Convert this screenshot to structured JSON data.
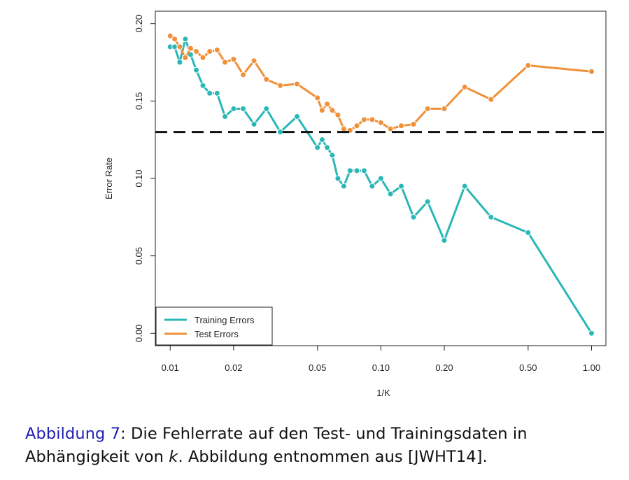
{
  "chart_data": {
    "type": "line",
    "xscale": "log",
    "x_tick_labels": [
      "0.01",
      "0.02",
      "0.05",
      "0.10",
      "0.20",
      "0.50",
      "1.00"
    ],
    "x_ticks": [
      0.01,
      0.02,
      0.05,
      0.1,
      0.2,
      0.5,
      1.0
    ],
    "y_tick_labels": [
      "0.00",
      "0.05",
      "0.10",
      "0.15",
      "0.20"
    ],
    "y_ticks": [
      0,
      0.05,
      0.1,
      0.15,
      0.2
    ],
    "xlabel": "1/K",
    "ylabel": "Error Rate",
    "xlim": [
      0.0085,
      1.17
    ],
    "ylim": [
      -0.008,
      0.208
    ],
    "hline": {
      "y": 0.13,
      "style": "dashed",
      "color": "#111111"
    },
    "legend_position": "bottom-left",
    "series": [
      {
        "name": "Training Errors",
        "color": "#2ab7b7",
        "x": [
          0.01,
          0.0105,
          0.0111,
          0.0118,
          0.0125,
          0.0133,
          0.0143,
          0.0154,
          0.0167,
          0.0182,
          0.02,
          0.0222,
          0.025,
          0.0286,
          0.0333,
          0.04,
          0.05,
          0.0526,
          0.0556,
          0.0588,
          0.0625,
          0.0667,
          0.0714,
          0.0769,
          0.0833,
          0.0909,
          0.1,
          0.1111,
          0.125,
          0.1429,
          0.1667,
          0.2,
          0.25,
          0.3333,
          0.5,
          1.0
        ],
        "y": [
          0.185,
          0.185,
          0.175,
          0.19,
          0.18,
          0.17,
          0.16,
          0.155,
          0.155,
          0.14,
          0.145,
          0.145,
          0.135,
          0.145,
          0.13,
          0.14,
          0.12,
          0.125,
          0.12,
          0.115,
          0.1,
          0.095,
          0.105,
          0.105,
          0.105,
          0.095,
          0.1,
          0.09,
          0.095,
          0.075,
          0.085,
          0.06,
          0.095,
          0.075,
          0.065,
          0.0
        ]
      },
      {
        "name": "Test Errors",
        "color": "#f0913a",
        "x": [
          0.01,
          0.0105,
          0.0111,
          0.0118,
          0.0125,
          0.0133,
          0.0143,
          0.0154,
          0.0167,
          0.0182,
          0.02,
          0.0222,
          0.025,
          0.0286,
          0.0333,
          0.04,
          0.05,
          0.0526,
          0.0556,
          0.0588,
          0.0625,
          0.0667,
          0.0714,
          0.0769,
          0.0833,
          0.0909,
          0.1,
          0.1111,
          0.125,
          0.1429,
          0.1667,
          0.2,
          0.25,
          0.3333,
          0.5,
          1.0
        ],
        "y": [
          0.192,
          0.19,
          0.185,
          0.178,
          0.184,
          0.182,
          0.178,
          0.182,
          0.183,
          0.175,
          0.177,
          0.167,
          0.176,
          0.164,
          0.16,
          0.161,
          0.152,
          0.144,
          0.148,
          0.144,
          0.141,
          0.132,
          0.131,
          0.134,
          0.138,
          0.138,
          0.136,
          0.132,
          0.134,
          0.135,
          0.145,
          0.145,
          0.159,
          0.151,
          0.173,
          0.169
        ]
      }
    ]
  },
  "caption": {
    "label": "Abbildung 7",
    "line1_rest": ": Die Fehlerrate auf den Test- und Trainingsdaten in",
    "line2_pre": "Abhängigkeit von ",
    "line2_var": "k",
    "line2_post": ". Abbildung entnommen aus [JWHT14]."
  }
}
